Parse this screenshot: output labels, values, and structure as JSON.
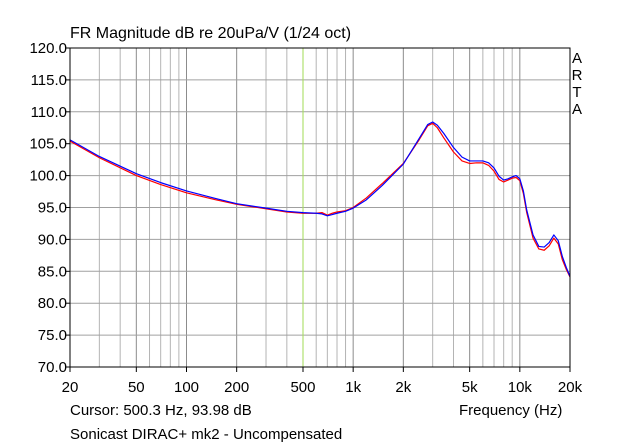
{
  "chart_data": {
    "type": "line",
    "title": "FR Magnitude dB re 20uPa/V (1/24 oct)",
    "watermark_letters": [
      "A",
      "R",
      "T",
      "A"
    ],
    "xlabel": "Frequency (Hz)",
    "ylabel": "",
    "x_scale": "log",
    "xlim": [
      20,
      20000
    ],
    "ylim": [
      70,
      120
    ],
    "grid": true,
    "x_ticks": [
      {
        "value": 20,
        "label": "20"
      },
      {
        "value": 50,
        "label": "50"
      },
      {
        "value": 100,
        "label": "100"
      },
      {
        "value": 200,
        "label": "200"
      },
      {
        "value": 500,
        "label": "500"
      },
      {
        "value": 1000,
        "label": "1k"
      },
      {
        "value": 2000,
        "label": "2k"
      },
      {
        "value": 5000,
        "label": "5k"
      },
      {
        "value": 10000,
        "label": "10k"
      },
      {
        "value": 20000,
        "label": "20k"
      }
    ],
    "y_ticks": [
      "70.0",
      "75.0",
      "80.0",
      "85.0",
      "90.0",
      "95.0",
      "100.0",
      "105.0",
      "110.0",
      "115.0",
      "120.0"
    ],
    "cursor_frequency": 500.3,
    "cursor_readout": "Cursor: 500.3 Hz, 93.98 dB",
    "device_label": "Sonicast DIRAC+ mk2 - Uncompensated",
    "series": [
      {
        "color": "#ff0000",
        "x": [
          20,
          30,
          50,
          70,
          100,
          150,
          200,
          300,
          400,
          500,
          600,
          650,
          700,
          750,
          800,
          900,
          1000,
          1200,
          1500,
          2000,
          2500,
          2800,
          3000,
          3200,
          3500,
          4000,
          4500,
          5000,
          5500,
          6000,
          6500,
          7000,
          7500,
          8000,
          8500,
          9000,
          9500,
          10000,
          10500,
          11000,
          12000,
          13000,
          14000,
          15000,
          16000,
          17000,
          18000,
          19000,
          20000
        ],
        "y": [
          105.4,
          102.8,
          100.0,
          98.6,
          97.3,
          96.2,
          95.5,
          94.8,
          94.3,
          94.1,
          94.1,
          94.2,
          93.8,
          94.1,
          94.3,
          94.5,
          95.0,
          96.5,
          98.8,
          101.9,
          105.7,
          107.8,
          108.2,
          107.5,
          105.9,
          103.7,
          102.3,
          101.9,
          102.0,
          102.0,
          101.6,
          100.7,
          99.4,
          99.0,
          99.3,
          99.6,
          99.7,
          99.2,
          97.2,
          94.2,
          90.2,
          88.5,
          88.3,
          89.0,
          90.2,
          89.3,
          86.8,
          85.3,
          84.1
        ]
      },
      {
        "color": "#0000ff",
        "x": [
          20,
          30,
          50,
          70,
          100,
          150,
          200,
          300,
          400,
          500,
          600,
          650,
          700,
          750,
          800,
          900,
          1000,
          1200,
          1500,
          2000,
          2500,
          2800,
          3000,
          3200,
          3500,
          4000,
          4500,
          5000,
          5500,
          6000,
          6500,
          7000,
          7500,
          8000,
          8500,
          9000,
          9500,
          10000,
          10500,
          11000,
          12000,
          13000,
          14000,
          15000,
          16000,
          17000,
          18000,
          19000,
          20000
        ],
        "y": [
          105.6,
          103.0,
          100.3,
          98.9,
          97.6,
          96.4,
          95.6,
          94.9,
          94.4,
          94.2,
          94.1,
          94.0,
          93.7,
          93.9,
          94.1,
          94.4,
          94.9,
          96.2,
          98.5,
          101.8,
          105.9,
          108.0,
          108.4,
          107.9,
          106.6,
          104.4,
          102.9,
          102.3,
          102.3,
          102.3,
          102.0,
          101.2,
          99.9,
          99.3,
          99.5,
          99.8,
          100.0,
          99.5,
          97.6,
          94.6,
          90.7,
          88.9,
          88.8,
          89.5,
          90.7,
          89.8,
          87.3,
          85.6,
          84.2
        ]
      }
    ]
  }
}
